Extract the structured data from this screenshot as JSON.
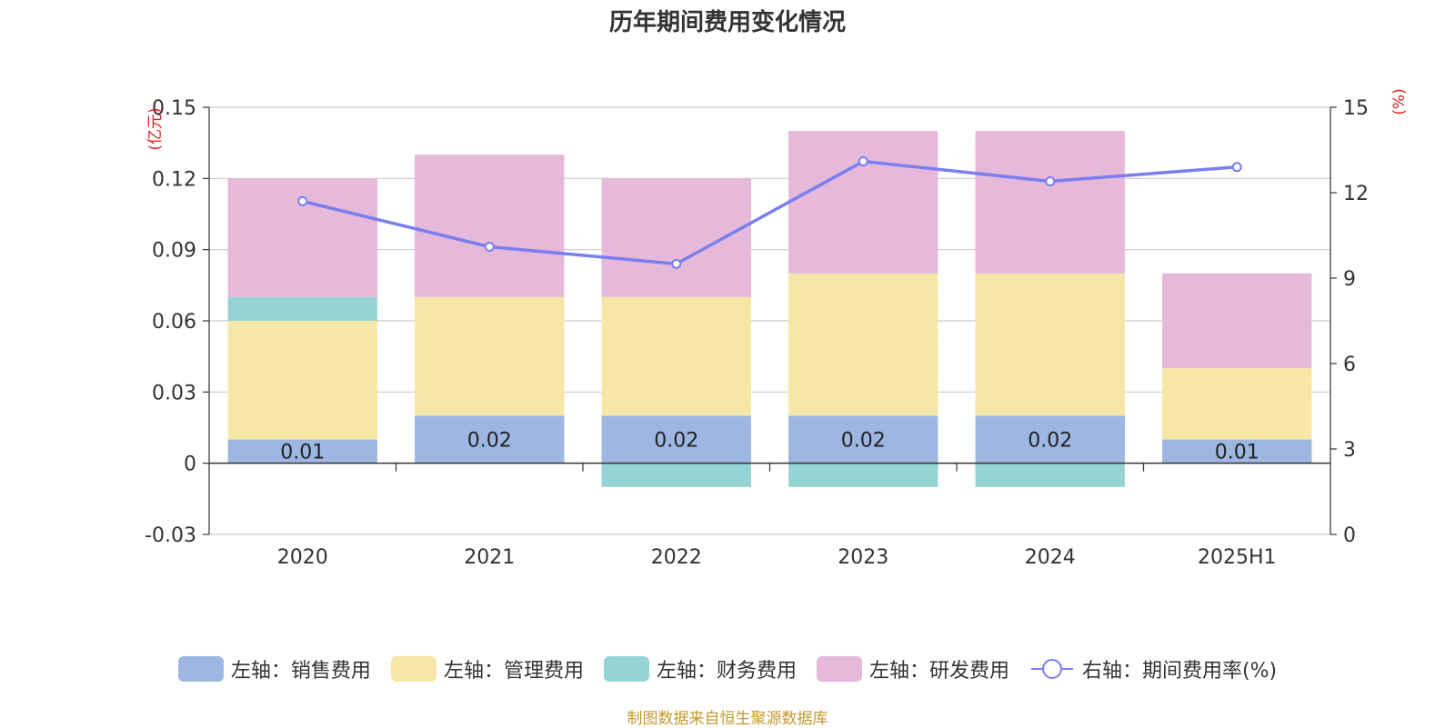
{
  "chart_data": {
    "type": "bar",
    "title": "历年期间费用变化情况",
    "categories": [
      "2020",
      "2021",
      "2022",
      "2023",
      "2024",
      "2025H1"
    ],
    "left_axis": {
      "unit_label": "(亿元)",
      "ylim": [
        -0.03,
        0.15
      ],
      "ticks": [
        "0.15",
        "0.12",
        "0.09",
        "0.06",
        "0.03",
        "0",
        "-0.03"
      ]
    },
    "right_axis": {
      "unit_label": "(%)",
      "ylim": [
        0,
        15
      ],
      "ticks": [
        "15",
        "12",
        "9",
        "6",
        "3",
        "0"
      ]
    },
    "series": [
      {
        "name": "左轴：销售费用",
        "axis": "left",
        "stacked": true,
        "color": "#9db7e2",
        "values": [
          0.01,
          0.02,
          0.02,
          0.02,
          0.02,
          0.01
        ],
        "labels": [
          "0.01",
          "0.02",
          "0.02",
          "0.02",
          "0.02",
          "0.01"
        ]
      },
      {
        "name": "左轴：管理费用",
        "axis": "left",
        "stacked": true,
        "color": "#f7e7a6",
        "values": [
          0.05,
          0.05,
          0.05,
          0.06,
          0.06,
          0.03
        ]
      },
      {
        "name": "左轴：财务费用",
        "axis": "left",
        "stacked": true,
        "color": "#96d4d3",
        "values": [
          0.01,
          0,
          -0.01,
          -0.01,
          -0.01,
          0
        ]
      },
      {
        "name": "左轴：研发费用",
        "axis": "left",
        "stacked": true,
        "color": "#e6b8d9",
        "values": [
          0.05,
          0.06,
          0.05,
          0.06,
          0.06,
          0.04
        ]
      },
      {
        "name": "右轴：期间费用率(%)",
        "axis": "right",
        "type": "line",
        "color": "#7a7fef",
        "values": [
          11.7,
          10.1,
          9.5,
          13.1,
          12.4,
          12.9
        ]
      }
    ],
    "grid": true,
    "legend_position": "bottom"
  },
  "footer": "制图数据来自恒生聚源数据库"
}
